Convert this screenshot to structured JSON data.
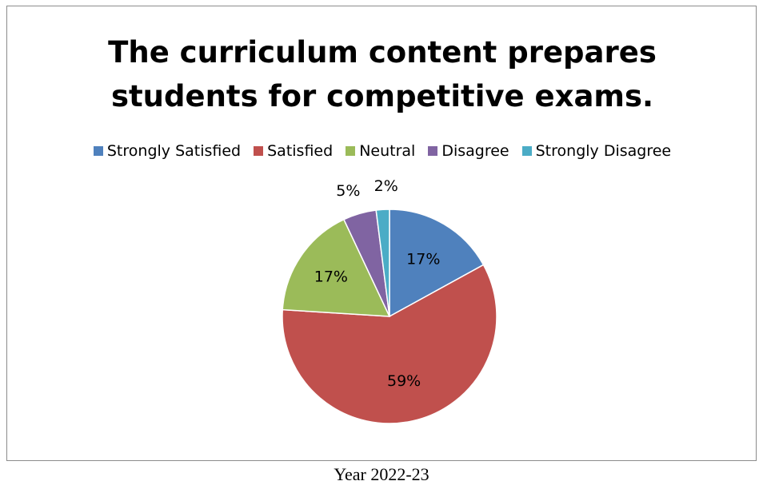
{
  "chart_data": {
    "type": "pie",
    "title_lines": [
      "The curriculum content prepares",
      "students for competitive exams."
    ],
    "categories": [
      "Strongly Satisfied",
      "Satisfied",
      "Neutral",
      "Disagree",
      "Strongly Disagree"
    ],
    "values": [
      17,
      59,
      17,
      5,
      2
    ],
    "labels": [
      "17%",
      "59%",
      "17%",
      "5%",
      "2%"
    ],
    "colors": [
      "#4f81bd",
      "#c0504d",
      "#9bbb59",
      "#8064a2",
      "#4bacc6"
    ],
    "legend_position": "top"
  },
  "caption": "Year 2022-23"
}
